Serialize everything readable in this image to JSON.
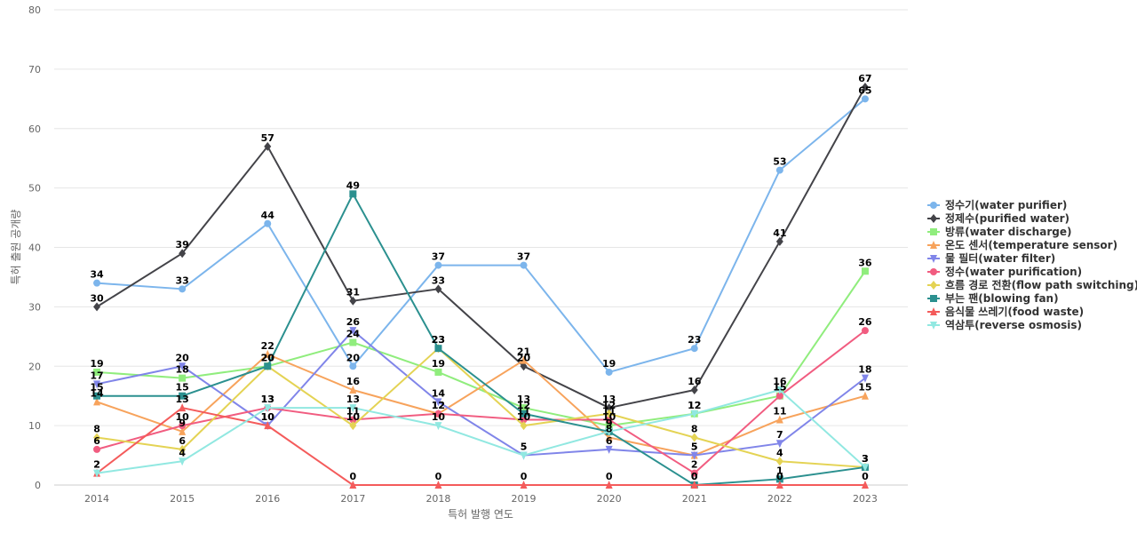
{
  "chart_data": {
    "type": "line",
    "title": "",
    "xlabel": "특허 발행 연도",
    "ylabel": "특허 출원 공개량",
    "ylim": [
      0,
      80
    ],
    "yticks": [
      0,
      10,
      20,
      30,
      40,
      50,
      60,
      70,
      80
    ],
    "grid": true,
    "legend_position": "right",
    "categories": [
      "2014",
      "2015",
      "2016",
      "2017",
      "2018",
      "2019",
      "2020",
      "2021",
      "2022",
      "2023"
    ],
    "series": [
      {
        "name": "정수기(water purifier)",
        "color": "#7cb5ec",
        "marker": "circle",
        "values": [
          34,
          33,
          44,
          20,
          37,
          37,
          19,
          23,
          53,
          65
        ]
      },
      {
        "name": "정제수(purified water)",
        "color": "#434348",
        "marker": "diamond",
        "values": [
          30,
          39,
          57,
          31,
          33,
          20,
          13,
          16,
          41,
          67
        ]
      },
      {
        "name": "방류(water discharge)",
        "color": "#90ed7d",
        "marker": "square",
        "values": [
          19,
          18,
          20,
          24,
          19,
          13,
          10,
          12,
          15,
          36
        ]
      },
      {
        "name": "온도 센서(temperature sensor)",
        "color": "#f7a35c",
        "marker": "triangle",
        "values": [
          14,
          9,
          22,
          16,
          12,
          21,
          8,
          5,
          11,
          15
        ]
      },
      {
        "name": "물 필터(water filter)",
        "color": "#8085e9",
        "marker": "triangle-down",
        "values": [
          17,
          20,
          10,
          26,
          14,
          5,
          6,
          5,
          7,
          18
        ]
      },
      {
        "name": "정수(water purification)",
        "color": "#f15c80",
        "marker": "circle",
        "values": [
          6,
          10,
          13,
          11,
          12,
          11,
          11,
          2,
          15,
          26
        ]
      },
      {
        "name": "흐름 경로 전환(flow path switching)",
        "color": "#e4d354",
        "marker": "diamond",
        "values": [
          8,
          6,
          20,
          10,
          23,
          10,
          12,
          8,
          4,
          3
        ]
      },
      {
        "name": "부는 팬(blowing fan)",
        "color": "#2b908f",
        "marker": "square",
        "values": [
          15,
          15,
          20,
          49,
          23,
          12,
          9,
          0,
          1,
          3
        ]
      },
      {
        "name": "음식물 쓰레기(food waste)",
        "color": "#f45b5b",
        "marker": "triangle",
        "values": [
          2,
          13,
          10,
          0,
          0,
          0,
          0,
          0,
          0,
          0
        ]
      },
      {
        "name": "역삼투(reverse osmosis)",
        "color": "#91e8e1",
        "marker": "triangle-down",
        "values": [
          2,
          4,
          13,
          13,
          10,
          5,
          9,
          12,
          16,
          3
        ]
      }
    ]
  }
}
